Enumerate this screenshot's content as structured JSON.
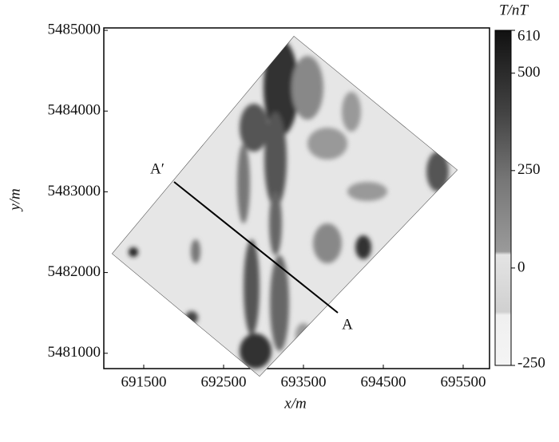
{
  "map": {
    "x_axis": {
      "label": "x/m",
      "lim": [
        691000,
        695830
      ],
      "ticks": [
        691500,
        692500,
        693500,
        694500,
        695500
      ]
    },
    "y_axis": {
      "label": "y/m",
      "lim": [
        5480810,
        5485030
      ],
      "ticks": [
        5481000,
        5482000,
        5483000,
        5484000,
        5485000
      ]
    },
    "colorbar": {
      "label": "T/nT",
      "lim": [
        -250,
        610
      ],
      "ticks": [
        610,
        500,
        250,
        0,
        -250
      ]
    },
    "profile": {
      "start_label": "A′",
      "end_label": "A"
    }
  }
}
